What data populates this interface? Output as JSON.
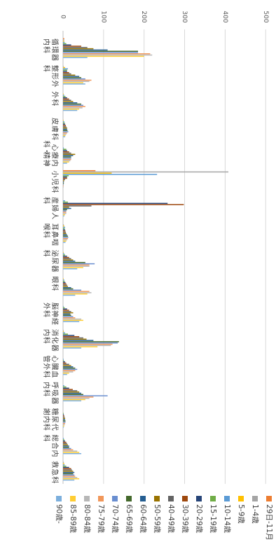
{
  "chart_data": {
    "type": "bar",
    "orientation": "horizontal",
    "rotation": "90deg clockwise",
    "xlim": [
      0,
      500
    ],
    "ticks": [
      "0",
      "100",
      "200",
      "300",
      "400",
      "500"
    ],
    "grid": true,
    "legend_position": "bottom",
    "categories": [
      [
        "循",
        "環",
        "器",
        "内",
        "科"
      ],
      [
        "整",
        "形",
        "外",
        "科"
      ],
      [
        "外",
        "科"
      ],
      [
        "皮",
        "膚",
        "科"
      ],
      [
        "心",
        "療",
        "内",
        "科・",
        "精",
        "神"
      ],
      [
        "小",
        "児",
        "科"
      ],
      [
        "産",
        "婦",
        "人",
        "科"
      ],
      [
        "耳",
        "鼻",
        "咽",
        "喉",
        "科"
      ],
      [
        "泌",
        "尿",
        "器",
        "科"
      ],
      [
        "眼",
        "科"
      ],
      [
        "脳",
        "神",
        "経",
        "外",
        "科"
      ],
      [
        "消",
        "化",
        "器",
        "内",
        "科"
      ],
      [
        "心",
        "臓",
        "血",
        "管",
        "外",
        "科"
      ],
      [
        "呼",
        "吸",
        "器",
        "内",
        "科"
      ],
      [
        "糖",
        "尿",
        "代",
        "謝",
        "内",
        "科"
      ],
      [
        "総",
        "合",
        "内",
        "科"
      ],
      [
        "救",
        "急",
        "科"
      ]
    ],
    "series": [
      {
        "name": "29日-11月",
        "color": "#ed7d31",
        "values": [
          3,
          0,
          0,
          0,
          0,
          80,
          0,
          0,
          0,
          0,
          0,
          0,
          0,
          0,
          0,
          0,
          0
        ]
      },
      {
        "name": "1-4歳",
        "color": "#a5a5a5",
        "values": [
          3,
          1,
          0,
          0,
          0,
          408,
          0,
          2,
          0,
          0,
          0,
          1,
          0,
          0,
          0,
          0,
          2
        ]
      },
      {
        "name": "5-9歳",
        "color": "#ffc000",
        "values": [
          3,
          5,
          1,
          1,
          0,
          120,
          0,
          3,
          1,
          1,
          0,
          2,
          0,
          0,
          0,
          0,
          3
        ]
      },
      {
        "name": "10-14歳",
        "color": "#5b9bd5",
        "values": [
          4,
          12,
          3,
          3,
          2,
          232,
          5,
          5,
          3,
          3,
          1,
          5,
          1,
          3,
          0,
          2,
          4
        ]
      },
      {
        "name": "15-19歳",
        "color": "#70ad47",
        "values": [
          8,
          10,
          6,
          4,
          8,
          14,
          12,
          4,
          5,
          4,
          4,
          12,
          2,
          8,
          1,
          3,
          8
        ]
      },
      {
        "name": "20-29歳",
        "color": "#264478",
        "values": [
          20,
          10,
          10,
          5,
          10,
          10,
          258,
          5,
          10,
          6,
          10,
          28,
          5,
          15,
          2,
          5,
          15
        ]
      },
      {
        "name": "30-39歳",
        "color": "#9e480e",
        "values": [
          45,
          15,
          15,
          7,
          15,
          10,
          298,
          6,
          15,
          8,
          15,
          40,
          8,
          24,
          3,
          8,
          20
        ]
      },
      {
        "name": "40-49歳",
        "color": "#636363",
        "values": [
          60,
          20,
          20,
          8,
          20,
          5,
          70,
          7,
          20,
          10,
          20,
          50,
          15,
          35,
          4,
          10,
          22
        ]
      },
      {
        "name": "50-59歳",
        "color": "#997300",
        "values": [
          75,
          30,
          25,
          10,
          30,
          3,
          15,
          8,
          25,
          12,
          25,
          58,
          20,
          40,
          5,
          12,
          25
        ]
      },
      {
        "name": "60-64歳",
        "color": "#255e91",
        "values": [
          110,
          40,
          35,
          10,
          25,
          2,
          20,
          10,
          30,
          20,
          18,
          75,
          25,
          45,
          5,
          15,
          28
        ]
      },
      {
        "name": "65-69歳",
        "color": "#43682b",
        "values": [
          185,
          45,
          45,
          11,
          20,
          2,
          10,
          12,
          55,
          25,
          20,
          138,
          30,
          50,
          6,
          15,
          25
        ]
      },
      {
        "name": "70-74歳",
        "color": "#698ed0",
        "values": [
          185,
          55,
          50,
          13,
          20,
          1,
          8,
          13,
          78,
          45,
          25,
          135,
          35,
          110,
          6,
          20,
          28
        ]
      },
      {
        "name": "75-79歳",
        "color": "#f1975a",
        "values": [
          215,
          70,
          55,
          10,
          20,
          1,
          8,
          12,
          65,
          65,
          30,
          122,
          30,
          75,
          5,
          25,
          30
        ]
      },
      {
        "name": "80-84歳",
        "color": "#b7b7b7",
        "values": [
          220,
          65,
          48,
          8,
          18,
          1,
          8,
          10,
          65,
          70,
          45,
          118,
          25,
          65,
          4,
          35,
          35
        ]
      },
      {
        "name": "85-89歳",
        "color": "#ffcd33",
        "values": [
          200,
          50,
          40,
          6,
          15,
          0,
          5,
          8,
          50,
          60,
          50,
          85,
          15,
          55,
          3,
          40,
          40
        ]
      },
      {
        "name": "90歳-",
        "color": "#7cafdd",
        "values": [
          60,
          55,
          35,
          5,
          10,
          0,
          3,
          6,
          35,
          30,
          40,
          45,
          10,
          45,
          2,
          45,
          28
        ]
      }
    ]
  }
}
